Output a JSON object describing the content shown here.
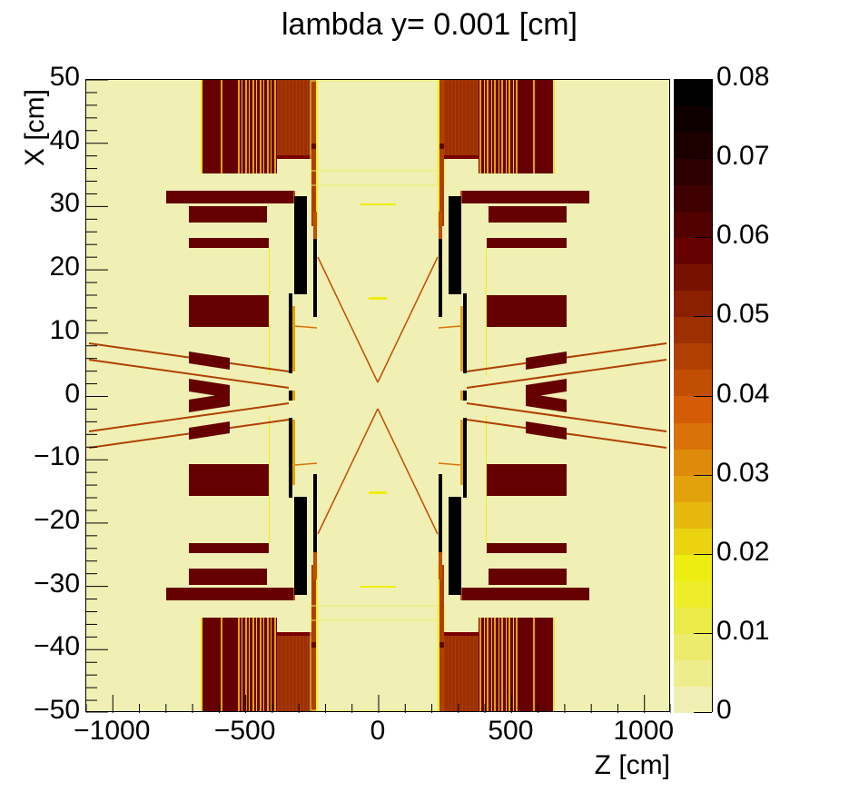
{
  "title": "lambda y=  0.001 [cm]",
  "chart_data": {
    "type": "heatmap",
    "title": "lambda y=  0.001 [cm]",
    "xlabel": "Z [cm]",
    "ylabel": "X [cm]",
    "xlim": [
      -1100,
      1100
    ],
    "ylim": [
      -50,
      50
    ],
    "xticks": [
      -1000,
      -500,
      0,
      500,
      1000
    ],
    "xtick_labels": [
      "−1000",
      "−500",
      "0",
      "500",
      "1000"
    ],
    "yticks": [
      50,
      40,
      30,
      20,
      10,
      0,
      -10,
      -20,
      -30,
      -40,
      -50
    ],
    "ytick_labels": [
      "50",
      "40",
      "30",
      "20",
      "10",
      "0",
      "−10",
      "−20",
      "−30",
      "−40",
      "−50"
    ],
    "colorbar": {
      "zlim": [
        0,
        0.08
      ],
      "ticks": [
        0,
        0.01,
        0.02,
        0.03,
        0.04,
        0.05,
        0.06,
        0.07,
        0.08
      ],
      "tick_labels": [
        "0",
        "0.01",
        "0.02",
        "0.03",
        "0.04",
        "0.05",
        "0.06",
        "0.07",
        "0.08"
      ],
      "n_levels": 24,
      "palette": [
        "#f0f0b4",
        "#eded8e",
        "#ebeb6c",
        "#eaea48",
        "#eded2a",
        "#eded12",
        "#ead410",
        "#e6b80e",
        "#e2a20c",
        "#de8a0a",
        "#d97208",
        "#d45c06",
        "#c24e04",
        "#b04002",
        "#9c3000",
        "#8a2000",
        "#781200",
        "#660000",
        "#520000",
        "#3e0000",
        "#2c0000",
        "#1c0000",
        "#0e0000",
        "#000000"
      ]
    },
    "grid": false,
    "background_value": 0,
    "description": "Symmetric detector material map in Z-X plane: dense (~0.055-0.065) blocks near |Z|=330-730, black (~0.08) vertical plates near |Z|~290-330, thin diverging yellow/orange cone lines from origin, tilted beam-pipe slats at |X|~6-8."
  },
  "axes": {
    "x": {
      "label": "Z [cm]"
    },
    "y": {
      "label": "X [cm]"
    }
  }
}
